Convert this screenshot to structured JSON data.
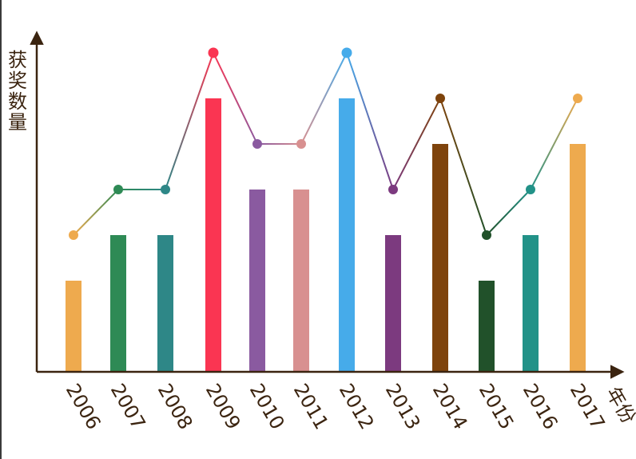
{
  "chart_data": {
    "type": "bar",
    "ylabel": "获奖数量",
    "xlabel": "年份",
    "categories": [
      "2006",
      "2007",
      "2008",
      "2009",
      "2010",
      "2011",
      "2012",
      "2013",
      "2014",
      "2015",
      "2016",
      "2017"
    ],
    "values": [
      2,
      3,
      3,
      6,
      4,
      4,
      6,
      3,
      5,
      2,
      3,
      5
    ],
    "line_values": [
      2,
      3,
      3,
      6,
      4,
      4,
      6,
      3,
      5,
      2,
      3,
      5
    ],
    "bar_colors": [
      "#EEAA4E",
      "#2E8A55",
      "#2E8787",
      "#FA3552",
      "#8A5AA0",
      "#D89090",
      "#46ABEA",
      "#7C3A7F",
      "#7E430C",
      "#21512A",
      "#229288",
      "#EEAA4E"
    ],
    "ylim": [
      0,
      7
    ],
    "grid": false,
    "axis_color": "#3b2410"
  }
}
